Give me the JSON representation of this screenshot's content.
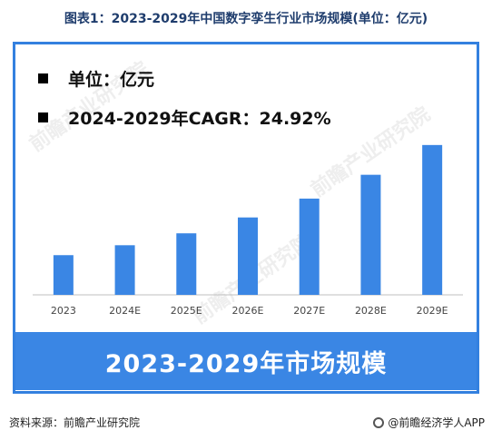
{
  "figure_title": "图表1：2023-2029年中国数字孪生行业市场规模(单位：亿元)",
  "legend": {
    "unit_line": "单位：亿元",
    "cagr_line": "2024-2029年CAGR：24.92%"
  },
  "banner_text": "2023-2029年市场规模",
  "source_text": "资料来源：前瞻产业研究院",
  "brand_text": "@前瞻经济学人APP",
  "colors": {
    "bar": "#3a86e4",
    "frame": "#3380df",
    "banner": "#3a86e4"
  },
  "chart_data": {
    "type": "bar",
    "categories": [
      "2023",
      "2024E",
      "2025E",
      "2026E",
      "2027E",
      "2028E",
      "2029E"
    ],
    "values": [
      40,
      50,
      62,
      78,
      97,
      121,
      151
    ],
    "title": "2023-2029年市场规模",
    "xlabel": "",
    "ylabel": "",
    "ylim": [
      0,
      160
    ],
    "grid": false,
    "data_labels": false
  }
}
